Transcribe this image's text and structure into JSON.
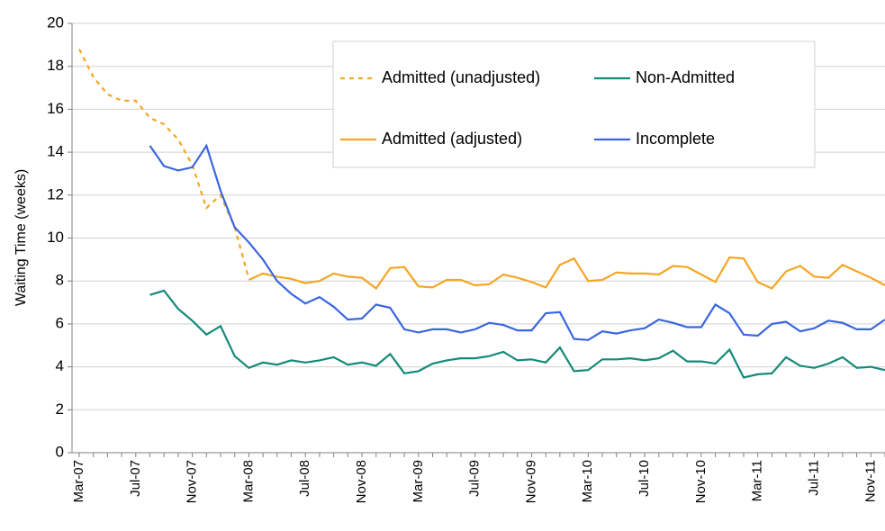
{
  "chart_data": {
    "type": "line",
    "y_label": "Waiting Time (weeks)",
    "categories": [
      "Mar-07",
      null,
      null,
      null,
      "Jul-07",
      null,
      null,
      null,
      "Nov-07",
      null,
      null,
      null,
      "Mar-08",
      null,
      null,
      null,
      "Jul-08",
      null,
      null,
      null,
      "Nov-08",
      null,
      null,
      null,
      "Mar-09",
      null,
      null,
      null,
      "Jul-09",
      null,
      null,
      null,
      "Nov-09",
      null,
      null,
      null,
      "Mar-10",
      null,
      null,
      null,
      "Jul-10",
      null,
      null,
      null,
      "Nov-10",
      null,
      null,
      null,
      "Mar-11",
      null,
      null,
      null,
      "Jul-11",
      null,
      null,
      null,
      "Nov-11",
      null
    ],
    "ylim": [
      0,
      20
    ],
    "yticks": [
      0,
      2,
      4,
      6,
      8,
      10,
      12,
      14,
      16,
      18,
      20
    ],
    "grid": true,
    "series": [
      {
        "name": "Admitted (unadjusted)",
        "color": "#f5a623",
        "dashed": true,
        "values": [
          18.8,
          17.5,
          16.7,
          16.4,
          16.4,
          15.6,
          15.3,
          14.6,
          13.4,
          11.4,
          12.0,
          10.5,
          8.1,
          null,
          null,
          null,
          null,
          null,
          null,
          null,
          null,
          null,
          null,
          null,
          null,
          null,
          null,
          null,
          null,
          null,
          null,
          null,
          null,
          null,
          null,
          null,
          null,
          null,
          null,
          null,
          null,
          null,
          null,
          null,
          null,
          null,
          null,
          null,
          null,
          null,
          null,
          null,
          null,
          null,
          null,
          null,
          null,
          null
        ]
      },
      {
        "name": "Non-Admitted",
        "color": "#138a7a",
        "values": [
          null,
          null,
          null,
          null,
          null,
          7.35,
          7.55,
          6.7,
          6.15,
          5.5,
          5.9,
          4.5,
          3.95,
          4.2,
          4.1,
          4.3,
          4.2,
          4.3,
          4.45,
          4.1,
          4.2,
          4.05,
          4.6,
          3.7,
          3.8,
          4.15,
          4.3,
          4.4,
          4.4,
          4.5,
          4.7,
          4.3,
          4.35,
          4.2,
          4.9,
          3.8,
          3.85,
          4.35,
          4.35,
          4.4,
          4.3,
          4.4,
          4.75,
          4.25,
          4.25,
          4.15,
          4.8,
          3.5,
          3.65,
          3.7,
          4.45,
          4.05,
          3.95,
          4.15,
          4.45,
          3.95,
          4.0,
          3.85
        ]
      },
      {
        "name": "Admitted (adjusted)",
        "color": "#f5a623",
        "values": [
          null,
          null,
          null,
          null,
          null,
          null,
          null,
          null,
          null,
          null,
          null,
          null,
          8.05,
          8.35,
          8.2,
          8.1,
          7.9,
          8.0,
          8.35,
          8.2,
          8.15,
          7.65,
          8.6,
          8.65,
          7.75,
          7.7,
          8.05,
          8.05,
          7.8,
          7.85,
          8.3,
          8.15,
          7.95,
          7.7,
          8.75,
          9.05,
          8.0,
          8.05,
          8.4,
          8.35,
          8.35,
          8.3,
          8.7,
          8.65,
          8.3,
          7.95,
          9.1,
          9.05,
          7.95,
          7.65,
          8.45,
          8.7,
          8.2,
          8.15,
          8.75,
          8.45,
          8.15,
          7.8
        ]
      },
      {
        "name": "Incomplete",
        "color": "#3a66e0",
        "values": [
          null,
          null,
          null,
          null,
          null,
          14.3,
          13.35,
          13.15,
          13.3,
          14.3,
          12.2,
          10.5,
          9.8,
          9.0,
          8.0,
          7.4,
          6.95,
          7.25,
          6.8,
          6.2,
          6.25,
          6.9,
          6.75,
          5.75,
          5.6,
          5.75,
          5.75,
          5.6,
          5.75,
          6.05,
          5.95,
          5.7,
          5.7,
          6.5,
          6.55,
          5.3,
          5.25,
          5.65,
          5.55,
          5.7,
          5.8,
          6.2,
          6.05,
          5.85,
          5.85,
          6.9,
          6.5,
          5.5,
          5.45,
          6.0,
          6.1,
          5.65,
          5.8,
          6.15,
          6.05,
          5.75,
          5.75,
          6.2
        ]
      }
    ]
  }
}
